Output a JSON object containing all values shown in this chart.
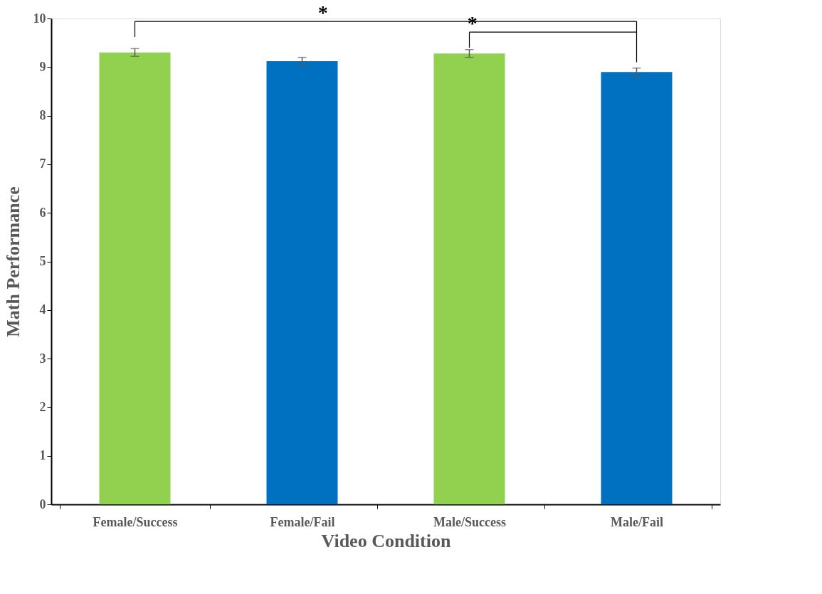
{
  "chart_data": {
    "type": "bar",
    "xlabel": "Video Condition",
    "ylabel": "Math Performance",
    "categories": [
      "Female/Success",
      "Female/Fail",
      "Male/Success",
      "Male/Fail"
    ],
    "values": [
      9.3,
      9.12,
      9.28,
      8.9
    ],
    "colors": [
      "#92d050",
      "#0070c0",
      "#92d050",
      "#0070c0"
    ],
    "errors": [
      0.08,
      0.08,
      0.08,
      0.08
    ],
    "ylim": [
      0,
      10
    ],
    "yticks": [
      0,
      1,
      2,
      3,
      4,
      5,
      6,
      7,
      8,
      9,
      10
    ],
    "grid": false,
    "annotations": [
      "*",
      "*"
    ]
  }
}
